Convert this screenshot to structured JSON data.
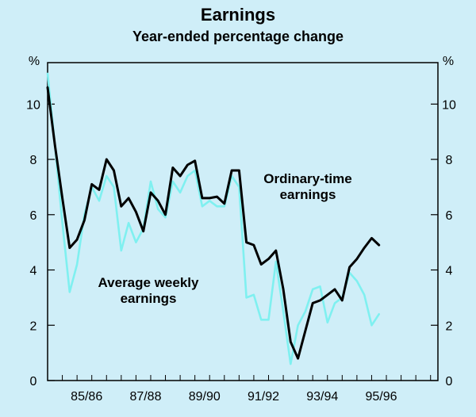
{
  "chart_data": {
    "type": "line",
    "title": "Earnings",
    "subtitle": "Year-ended percentage change",
    "y_unit_left": "%",
    "y_unit_right": "%",
    "ylim": [
      0,
      11.5
    ],
    "y_ticks": [
      0,
      2,
      4,
      6,
      8,
      10
    ],
    "x_tick_labels": [
      "85/86",
      "87/88",
      "89/90",
      "91/92",
      "93/94",
      "95/96"
    ],
    "x_range": [
      0,
      53
    ],
    "x_tick_positions": [
      5.3,
      13.3,
      21.3,
      29.3,
      37.3,
      45.3
    ],
    "grid": false,
    "series": [
      {
        "name": "Ordinary-time earnings",
        "color": "#000000",
        "label_lines": [
          "Ordinary-time",
          "earnings"
        ],
        "points": [
          [
            0,
            10.6
          ],
          [
            1,
            8.5
          ],
          [
            2,
            6.6
          ],
          [
            3,
            4.8
          ],
          [
            4,
            5.1
          ],
          [
            5,
            5.8
          ],
          [
            6,
            7.1
          ],
          [
            7,
            6.9
          ],
          [
            8,
            8.0
          ],
          [
            9,
            7.6
          ],
          [
            10,
            6.3
          ],
          [
            11,
            6.6
          ],
          [
            12,
            6.1
          ],
          [
            13,
            5.4
          ],
          [
            14,
            6.8
          ],
          [
            15,
            6.5
          ],
          [
            16,
            6.0
          ],
          [
            17,
            7.7
          ],
          [
            18,
            7.4
          ],
          [
            19,
            7.8
          ],
          [
            20,
            7.95
          ],
          [
            21,
            6.6
          ],
          [
            22,
            6.6
          ],
          [
            23,
            6.65
          ],
          [
            24,
            6.4
          ],
          [
            25,
            7.6
          ],
          [
            26,
            7.6
          ],
          [
            27,
            5.0
          ],
          [
            28,
            4.9
          ],
          [
            29,
            4.2
          ],
          [
            30,
            4.4
          ],
          [
            31,
            4.7
          ],
          [
            32,
            3.3
          ],
          [
            33,
            1.4
          ],
          [
            34,
            0.8
          ],
          [
            35,
            1.8
          ],
          [
            36,
            2.8
          ],
          [
            37,
            2.9
          ],
          [
            38,
            3.1
          ],
          [
            39,
            3.3
          ],
          [
            40,
            2.9
          ],
          [
            41,
            4.1
          ],
          [
            42,
            4.4
          ],
          [
            43,
            4.8
          ],
          [
            44,
            5.15
          ],
          [
            45,
            4.9
          ]
        ]
      },
      {
        "name": "Average weekly earnings",
        "color": "#7ff0f0",
        "label_lines": [
          "Average weekly",
          "earnings"
        ],
        "points": [
          [
            0,
            11.1
          ],
          [
            1,
            8.5
          ],
          [
            2,
            5.7
          ],
          [
            3,
            3.2
          ],
          [
            4,
            4.2
          ],
          [
            5,
            6.0
          ],
          [
            6,
            7.0
          ],
          [
            7,
            6.5
          ],
          [
            8,
            7.4
          ],
          [
            9,
            7.0
          ],
          [
            10,
            4.7
          ],
          [
            11,
            5.7
          ],
          [
            12,
            5.0
          ],
          [
            13,
            5.5
          ],
          [
            14,
            7.2
          ],
          [
            15,
            6.2
          ],
          [
            16,
            5.9
          ],
          [
            17,
            7.2
          ],
          [
            18,
            6.8
          ],
          [
            19,
            7.4
          ],
          [
            20,
            7.6
          ],
          [
            21,
            6.3
          ],
          [
            22,
            6.5
          ],
          [
            23,
            6.3
          ],
          [
            24,
            6.3
          ],
          [
            25,
            7.4
          ],
          [
            26,
            7.0
          ],
          [
            27,
            3.0
          ],
          [
            28,
            3.1
          ],
          [
            29,
            2.2
          ],
          [
            30,
            2.2
          ],
          [
            31,
            4.3
          ],
          [
            32,
            2.5
          ],
          [
            33,
            0.6
          ],
          [
            34,
            2.0
          ],
          [
            35,
            2.5
          ],
          [
            36,
            3.3
          ],
          [
            37,
            3.4
          ],
          [
            38,
            2.1
          ],
          [
            39,
            2.8
          ],
          [
            40,
            3.0
          ],
          [
            41,
            3.9
          ],
          [
            42,
            3.6
          ],
          [
            43,
            3.1
          ],
          [
            44,
            2.0
          ],
          [
            45,
            2.4
          ]
        ]
      }
    ]
  }
}
